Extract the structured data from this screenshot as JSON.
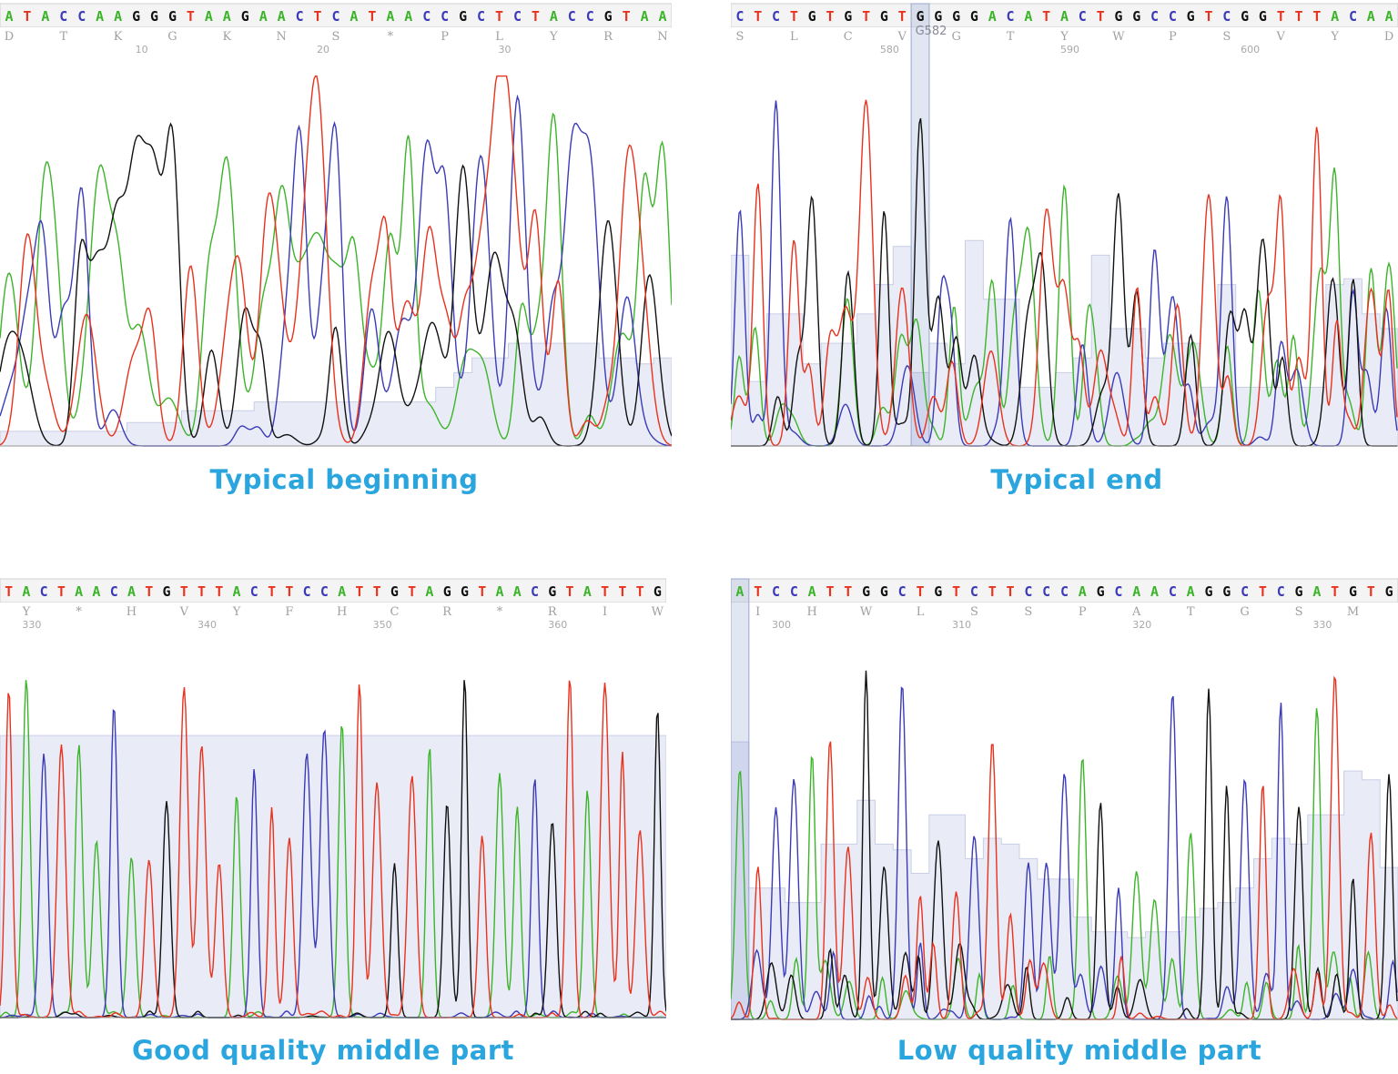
{
  "colors": {
    "A": "#3cb42a",
    "C": "#3b3bb8",
    "G": "#111111",
    "T": "#e8321e",
    "quality_fill": "#e9ecf6",
    "quality_stroke": "#c9cee6",
    "caption": "#2aa5de"
  },
  "chart_data": [
    {
      "type": "line",
      "caption": "Typical beginning",
      "sequence": "ATACCAAGGGTAAGAACTCATAACCGCTCTACCGTAA",
      "translation": [
        "D",
        "T",
        "K",
        "G",
        "K",
        "N",
        "S",
        "*",
        "P",
        "L",
        "Y",
        "R",
        "N"
      ],
      "first_base_number": 3,
      "position_ticks": [
        10,
        20,
        30
      ],
      "quality": [
        0.05,
        0.05,
        0.05,
        0.05,
        0.05,
        0.05,
        0.05,
        0.08,
        0.08,
        0.08,
        0.12,
        0.12,
        0.12,
        0.12,
        0.15,
        0.15,
        0.15,
        0.15,
        0.15,
        0.15,
        0.15,
        0.15,
        0.15,
        0.15,
        0.2,
        0.25,
        0.3,
        0.3,
        0.35,
        0.35,
        0.35,
        0.35,
        0.35,
        0.3,
        0.3,
        0.28,
        0.3
      ]
    },
    {
      "type": "line",
      "caption": "Typical end",
      "sequence": "CTCTGTGTGTGGGGACATACTGGCCGTCGGTTTACAA",
      "translation": [
        "S",
        "L",
        "C",
        "V",
        "G",
        "T",
        "Y",
        "W",
        "P",
        "S",
        "V",
        "Y",
        "D"
      ],
      "first_base_number": 572,
      "position_ticks": [
        580,
        590,
        600
      ],
      "selected_base_label": "G582",
      "quality": [
        0.65,
        0.22,
        0.45,
        0.45,
        0.28,
        0.35,
        0.35,
        0.45,
        0.55,
        0.68,
        0.25,
        0.35,
        0.28,
        0.7,
        0.5,
        0.5,
        0.2,
        0.2,
        0.25,
        0.3,
        0.65,
        0.4,
        0.4,
        0.3,
        0.35,
        0.35,
        0.2,
        0.55,
        0.2,
        0.2,
        0.2,
        0.2,
        0.2,
        0.55,
        0.57,
        0.45,
        0.4
      ]
    },
    {
      "type": "line",
      "caption": "Good quality middle part",
      "sequence": "TACTAACATGTTTACTTCCATTGTAGGTAACGTATTTG",
      "translation": [
        "Y",
        "*",
        "H",
        "V",
        "Y",
        "F",
        "H",
        "C",
        "R",
        "*",
        "R",
        "I",
        "W"
      ],
      "first_base_number": 329,
      "position_ticks": [
        330,
        340,
        350,
        360
      ],
      "quality": [
        0.97,
        0.97,
        0.97,
        0.97,
        0.97,
        0.97,
        0.97,
        0.97,
        0.97,
        0.97,
        0.97,
        0.97,
        0.97,
        0.97,
        0.97,
        0.97,
        0.97,
        0.97,
        0.97,
        0.97,
        0.97,
        0.97,
        0.97,
        0.97,
        0.97,
        0.97,
        0.97,
        0.97,
        0.97,
        0.97,
        0.97,
        0.97,
        0.97,
        0.97,
        0.97,
        0.97,
        0.97,
        0.97
      ]
    },
    {
      "type": "line",
      "caption": "Low quality middle part",
      "sequence": "ATCCATTGGCTGTCTTCCCAGCAACAGGCTCGATGTG",
      "translation": [
        "I",
        "H",
        "W",
        "L",
        "S",
        "S",
        "P",
        "A",
        "T",
        "G",
        "S",
        "M",
        "*"
      ],
      "first_base_number": 298,
      "position_ticks": [
        300,
        310,
        320,
        330
      ],
      "quality": [
        0.95,
        0.45,
        0.45,
        0.4,
        0.4,
        0.6,
        0.6,
        0.75,
        0.6,
        0.58,
        0.5,
        0.7,
        0.7,
        0.55,
        0.62,
        0.6,
        0.55,
        0.48,
        0.48,
        0.35,
        0.3,
        0.3,
        0.28,
        0.3,
        0.3,
        0.35,
        0.38,
        0.4,
        0.45,
        0.55,
        0.62,
        0.6,
        0.7,
        0.7,
        0.85,
        0.82,
        0.52
      ]
    }
  ]
}
